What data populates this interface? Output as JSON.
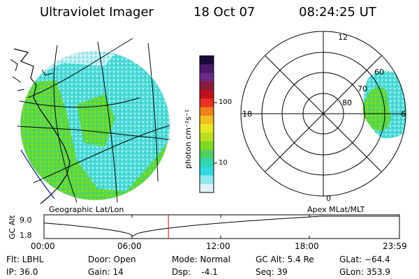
{
  "header": {
    "title": "Ultraviolet Imager",
    "date": "18 Oct 07",
    "time": "08:24:25 UT"
  },
  "colorbar": {
    "label": "photon cm⁻²s⁻¹",
    "ticks": [
      "100",
      "10"
    ],
    "colors": [
      "#1a0a3a",
      "#4a1a6a",
      "#6a2a8a",
      "#8a1a3a",
      "#c01020",
      "#e83020",
      "#f08018",
      "#f0c020",
      "#e8e820",
      "#b8e020",
      "#80d820",
      "#50d060",
      "#30d8b0",
      "#30d8e0",
      "#90e8f0",
      "#e0f4f8"
    ]
  },
  "left_panel": {
    "caption": "Geographic Lat/Lon"
  },
  "right_panel": {
    "caption": "Apex MLat/MLT",
    "mlt_labels": [
      "12",
      "18",
      "6",
      "0"
    ],
    "lat_labels": [
      "60",
      "70",
      "80"
    ]
  },
  "altitude_plot": {
    "axis_label": "GC Alt",
    "y_ticks": [
      "9.0",
      "1.8"
    ],
    "x_ticks": [
      "00:00",
      "06:00",
      "12:00",
      "18:00",
      "23:59"
    ],
    "marker_time_hours": 8.4,
    "marker_color": "#e00000"
  },
  "info": {
    "flt": "Flt: LBHL",
    "ip": "IP: 36.0",
    "door": "Door: Open",
    "gain": "Gain: 14",
    "mode": "Mode: Normal",
    "dsp": "Dsp:    -4.1",
    "gcalt": "GC Alt: 5.4 Re",
    "seq": "Seq: 39",
    "glat": "GLat: −64.4",
    "glon": "GLon: 353.9"
  }
}
